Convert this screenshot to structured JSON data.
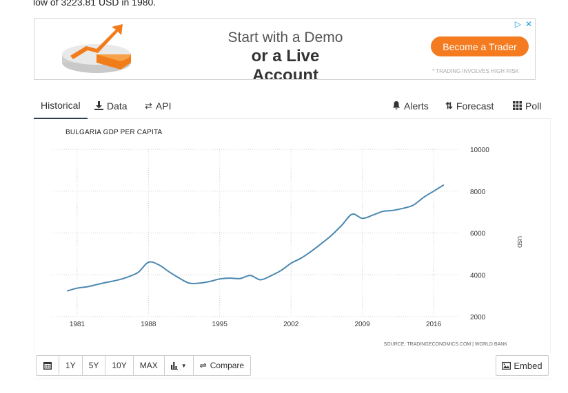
{
  "intro_text": "low of 3223.81 USD in 1980.",
  "ad": {
    "line1": "Start with a Demo",
    "line2": "or a Live Account",
    "cta": "Become a Trader",
    "note": "* TRADING INVOLVES HIGH RISK",
    "accent": "#f47b20"
  },
  "tabs": {
    "historical": "Historical",
    "data": "Data",
    "api": "API",
    "alerts": "Alerts",
    "forecast": "Forecast",
    "poll": "Poll"
  },
  "toolbar": {
    "one_year": "1Y",
    "five_year": "5Y",
    "ten_year": "10Y",
    "max": "MAX",
    "compare": "Compare",
    "embed": "Embed"
  },
  "chart_data": {
    "type": "line",
    "title": "BULGARIA GDP PER CAPITA",
    "ylabel": "USD",
    "xlabel": "",
    "source": "SOURCE: TRADINGECONOMICS.COM | WORLD BANK",
    "ylim": [
      2000,
      10000
    ],
    "xlim": [
      1978.5,
      2018.5
    ],
    "x_ticks": [
      "1981",
      "1988",
      "1995",
      "2002",
      "2009",
      "2016"
    ],
    "y_ticks": [
      "2000",
      "4000",
      "6000",
      "8000",
      "10000"
    ],
    "grid": true,
    "line_color": "#4a88b0",
    "series": [
      {
        "x": [
          1980,
          1981,
          1982,
          1983,
          1984,
          1985,
          1986,
          1987,
          1988,
          1989,
          1990,
          1991,
          1992,
          1993,
          1994,
          1995,
          1996,
          1997,
          1998,
          1999,
          2000,
          2001,
          2002,
          2003,
          2004,
          2005,
          2006,
          2007,
          2008,
          2009,
          2010,
          2011,
          2012,
          2013,
          2014,
          2015,
          2016,
          2017
        ],
        "values": [
          3224,
          3360,
          3430,
          3540,
          3650,
          3750,
          3900,
          4120,
          4600,
          4480,
          4150,
          3850,
          3600,
          3600,
          3680,
          3800,
          3840,
          3820,
          3970,
          3760,
          3950,
          4200,
          4550,
          4800,
          5130,
          5500,
          5900,
          6380,
          6900,
          6700,
          6850,
          7030,
          7080,
          7180,
          7330,
          7700,
          8000,
          8300
        ]
      }
    ]
  }
}
